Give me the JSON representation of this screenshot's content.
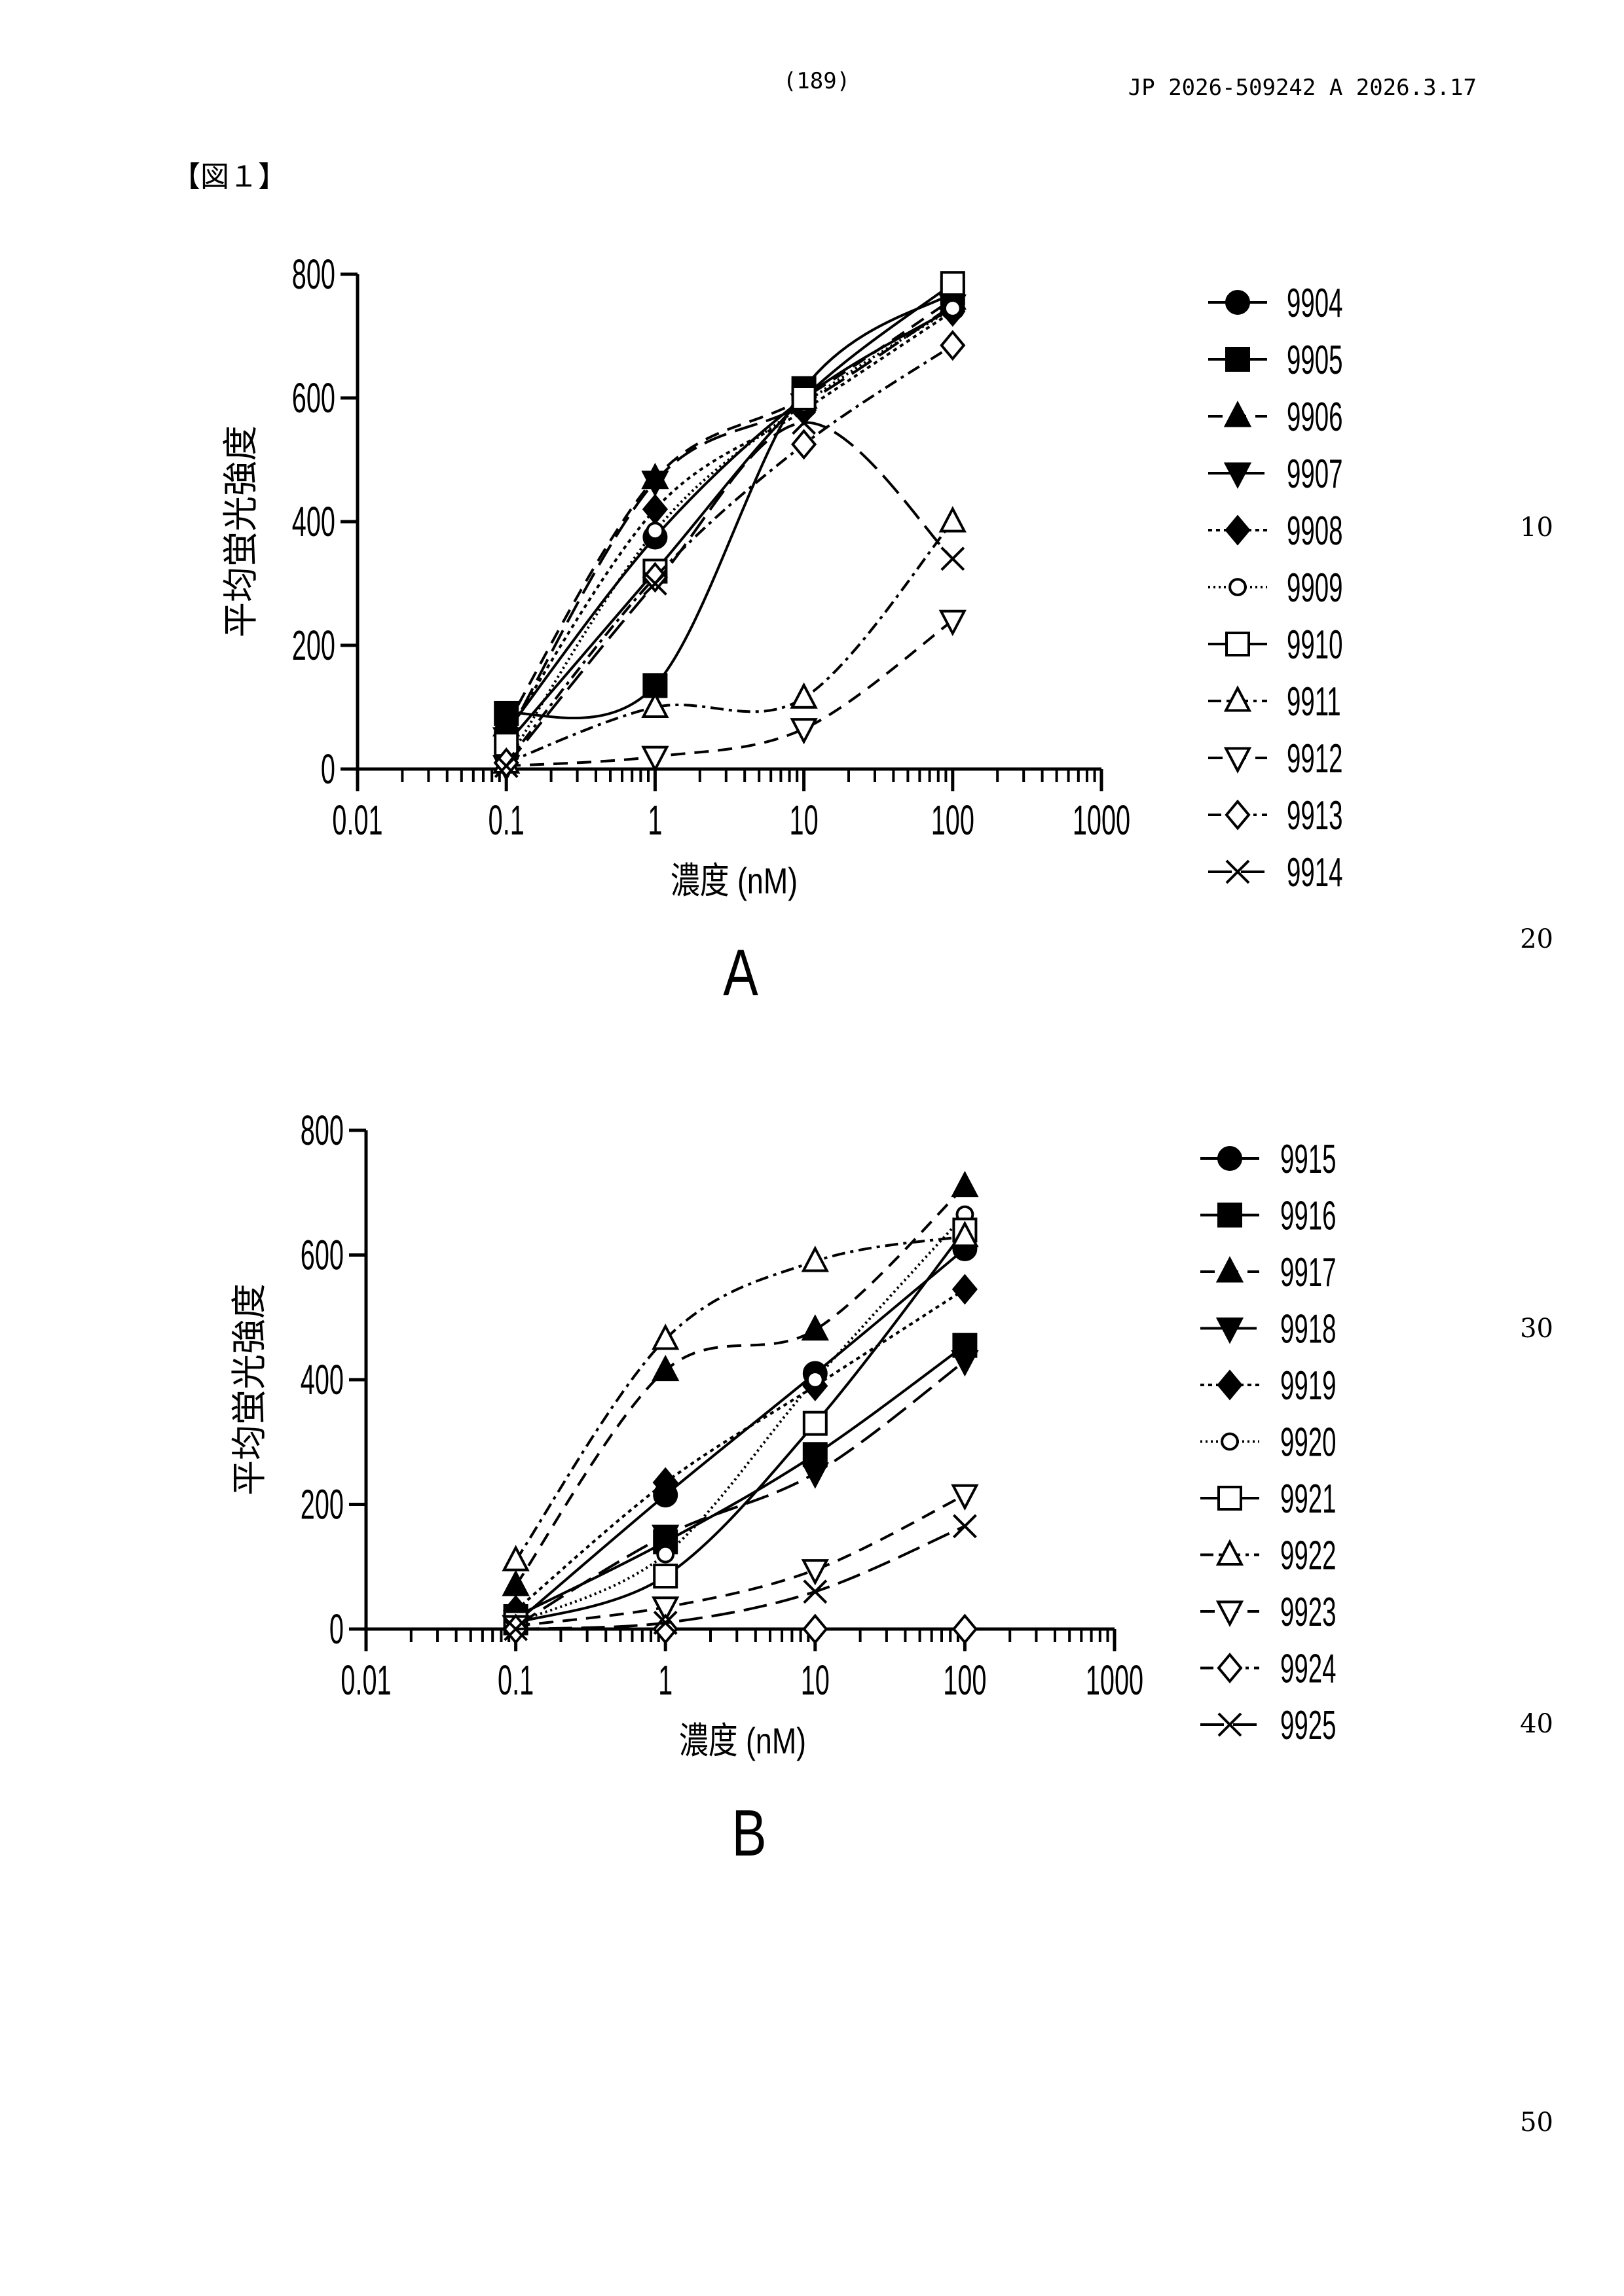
{
  "header": {
    "page_number": "(189)",
    "publication": "JP  2026-509242  A  2026.3.17",
    "figure_label": "【図１】"
  },
  "line_numbers": [
    "10",
    "20",
    "30",
    "40",
    "50"
  ],
  "chart_data": [
    {
      "type": "line",
      "panel_label": "A",
      "xlabel": "濃度 (nM)",
      "ylabel": "平均蛍光強度",
      "x_scale": "log",
      "xlim": [
        0.01,
        1000
      ],
      "ylim": [
        0,
        800
      ],
      "x_ticks": [
        "0.01",
        "0.1",
        "1",
        "10",
        "100",
        "1000"
      ],
      "y_ticks": [
        "0",
        "200",
        "400",
        "600",
        "800"
      ],
      "legend_placement": "right",
      "x": [
        0.1,
        1,
        10,
        100
      ],
      "series": [
        {
          "name": "9904",
          "marker": "filled-circle",
          "line": "solid",
          "values": [
            60,
            375,
            600,
            745
          ]
        },
        {
          "name": "9905",
          "marker": "filled-square",
          "line": "solid",
          "values": [
            90,
            135,
            615,
            770
          ]
        },
        {
          "name": "9906",
          "marker": "filled-triangle-up",
          "line": "dashed",
          "values": [
            70,
            470,
            600,
            760
          ]
        },
        {
          "name": "9907",
          "marker": "filled-triangle-down",
          "line": "long-dash",
          "values": [
            50,
            465,
            590,
            750
          ]
        },
        {
          "name": "9908",
          "marker": "filled-diamond",
          "line": "dotted",
          "values": [
            55,
            420,
            580,
            740
          ]
        },
        {
          "name": "9909",
          "marker": "open-circle",
          "line": "fine-dotted",
          "values": [
            10,
            385,
            590,
            745
          ]
        },
        {
          "name": "9910",
          "marker": "open-square",
          "line": "solid",
          "values": [
            40,
            320,
            600,
            785
          ]
        },
        {
          "name": "9911",
          "marker": "open-triangle-up",
          "line": "dash-dot",
          "values": [
            10,
            100,
            115,
            400
          ]
        },
        {
          "name": "9912",
          "marker": "open-triangle-down",
          "line": "dashed",
          "values": [
            5,
            20,
            65,
            240
          ]
        },
        {
          "name": "9913",
          "marker": "open-diamond",
          "line": "dash-dot",
          "values": [
            10,
            310,
            525,
            685
          ]
        },
        {
          "name": "9914",
          "marker": "cross",
          "line": "long-dash",
          "values": [
            5,
            300,
            560,
            340
          ]
        }
      ]
    },
    {
      "type": "line",
      "panel_label": "B",
      "xlabel": "濃度 (nM)",
      "ylabel": "平均蛍光強度",
      "x_scale": "log",
      "xlim": [
        0.01,
        1000
      ],
      "ylim": [
        0,
        800
      ],
      "x_ticks": [
        "0.01",
        "0.1",
        "1",
        "10",
        "100",
        "1000"
      ],
      "y_ticks": [
        "0",
        "200",
        "400",
        "600",
        "800"
      ],
      "legend_placement": "right",
      "x": [
        0.1,
        1,
        10,
        100
      ],
      "series": [
        {
          "name": "9915",
          "marker": "filled-circle",
          "line": "solid",
          "values": [
            10,
            215,
            410,
            610
          ]
        },
        {
          "name": "9916",
          "marker": "filled-square",
          "line": "solid",
          "values": [
            20,
            140,
            280,
            455
          ]
        },
        {
          "name": "9917",
          "marker": "filled-triangle-up",
          "line": "dashed",
          "values": [
            70,
            415,
            480,
            710
          ]
        },
        {
          "name": "9918",
          "marker": "filled-triangle-down",
          "line": "long-dash",
          "values": [
            5,
            150,
            250,
            430
          ]
        },
        {
          "name": "9919",
          "marker": "filled-diamond",
          "line": "dotted",
          "values": [
            30,
            235,
            390,
            545
          ]
        },
        {
          "name": "9920",
          "marker": "open-circle",
          "line": "fine-dotted",
          "values": [
            10,
            120,
            400,
            665
          ]
        },
        {
          "name": "9921",
          "marker": "open-square",
          "line": "solid",
          "values": [
            10,
            85,
            330,
            640
          ]
        },
        {
          "name": "9922",
          "marker": "open-triangle-up",
          "line": "dash-dot",
          "values": [
            110,
            465,
            590,
            630
          ]
        },
        {
          "name": "9923",
          "marker": "open-triangle-down",
          "line": "dashed",
          "values": [
            5,
            35,
            95,
            215
          ]
        },
        {
          "name": "9924",
          "marker": "open-diamond",
          "line": "dash-dot",
          "values": [
            0,
            0,
            0,
            0
          ]
        },
        {
          "name": "9925",
          "marker": "cross",
          "line": "long-dash",
          "values": [
            0,
            10,
            60,
            165
          ]
        }
      ]
    }
  ]
}
